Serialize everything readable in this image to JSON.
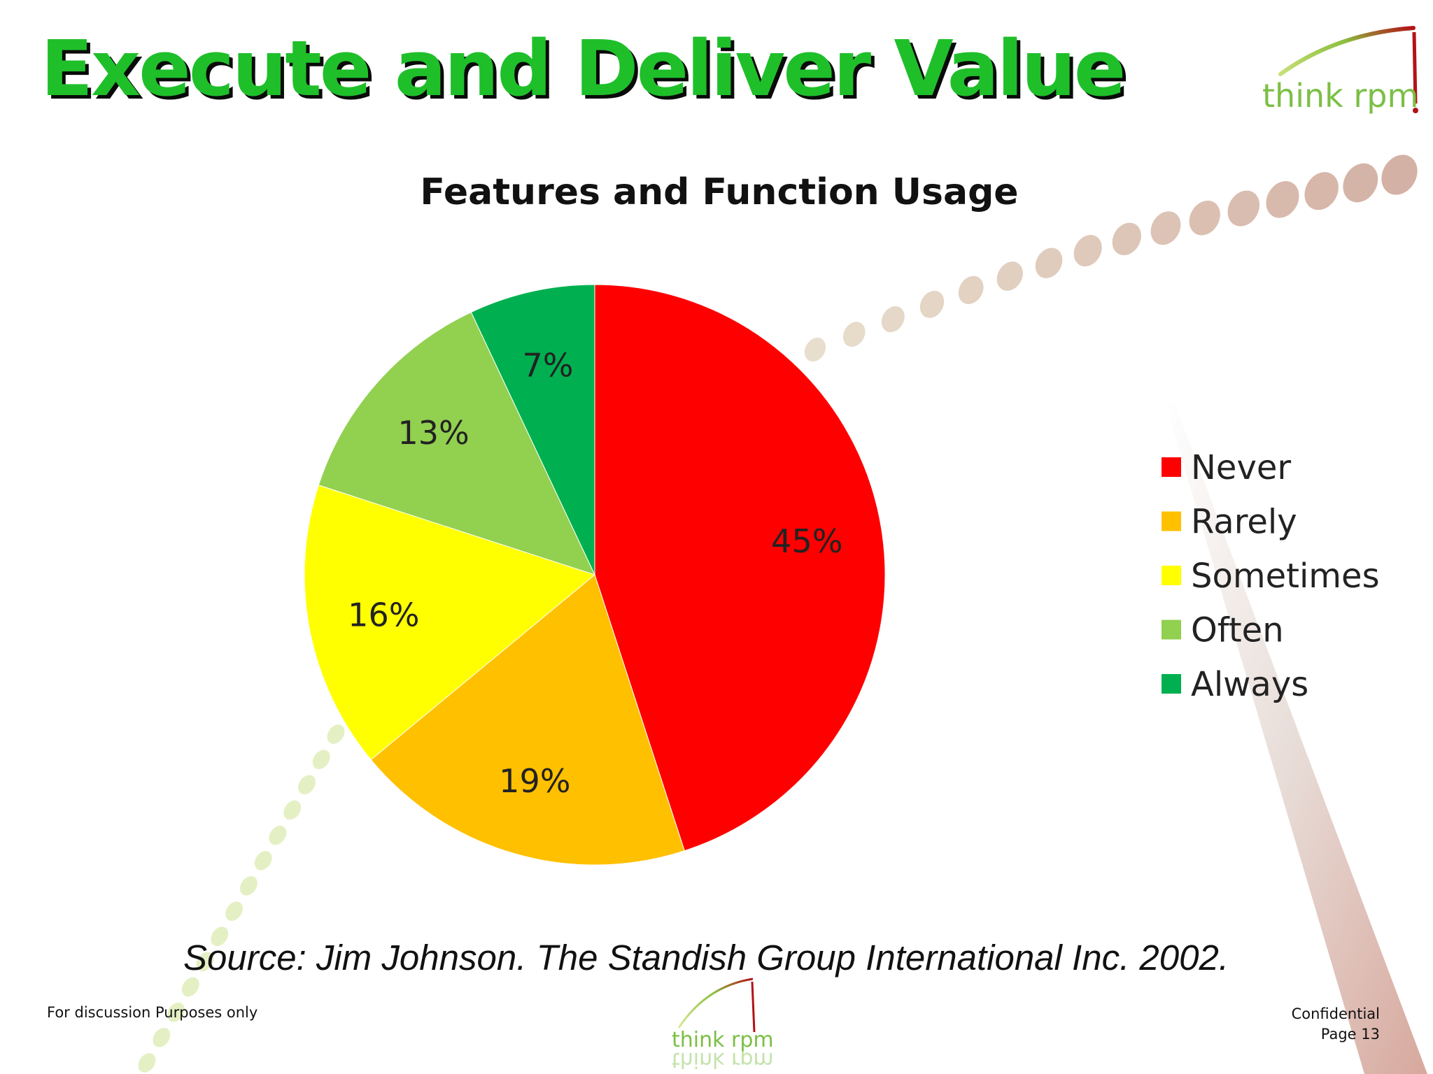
{
  "slide": {
    "title": "Execute and Deliver Value",
    "logo_text": "think rpm",
    "source": "Source: Jim Johnson. The Standish Group International Inc. 2002.",
    "footer_left": "For discussion Purposes only",
    "footer_confidential": "Confidential",
    "footer_page": "Page 13"
  },
  "colors": {
    "title_green": "#1fbf2a",
    "title_shadow": "#0a0a0a",
    "logo_green": "#7cbf45",
    "logo_red": "#b31217"
  },
  "chart_data": {
    "type": "pie",
    "title": "Features and Function Usage",
    "categories": [
      "Never",
      "Rarely",
      "Sometimes",
      "Often",
      "Always"
    ],
    "values": [
      45,
      19,
      16,
      13,
      7
    ],
    "labels": [
      "45%",
      "19%",
      "16%",
      "13%",
      "7%"
    ],
    "colors": [
      "#ff0000",
      "#ffc000",
      "#ffff00",
      "#92d050",
      "#00b050"
    ],
    "start": "12 o'clock, clockwise",
    "legend": "right"
  }
}
